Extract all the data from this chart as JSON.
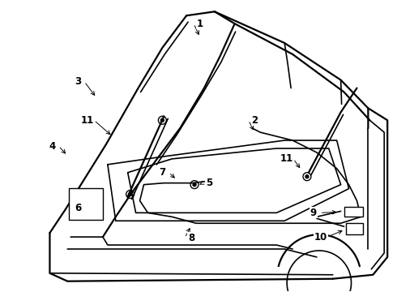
{
  "background_color": "#ffffff",
  "line_color": "#000000",
  "figsize": [
    4.9,
    3.6
  ],
  "dpi": 100,
  "small_circles": [
    [
      200,
      148,
      5
    ],
    [
      160,
      240,
      5
    ],
    [
      380,
      218,
      5
    ],
    [
      240,
      228,
      5
    ]
  ],
  "labels_pos": [
    [
      "1",
      247,
      28,
      247,
      45
    ],
    [
      "2",
      315,
      148,
      315,
      163
    ],
    [
      "3",
      95,
      100,
      118,
      120
    ],
    [
      "4",
      63,
      180,
      82,
      192
    ],
    [
      "5",
      258,
      226,
      246,
      228
    ],
    [
      "6",
      95,
      257,
      110,
      257
    ],
    [
      "7",
      200,
      213,
      218,
      222
    ],
    [
      "8",
      236,
      294,
      236,
      279
    ],
    [
      "9",
      388,
      263,
      420,
      262
    ],
    [
      "10",
      397,
      293,
      427,
      284
    ],
    [
      "11",
      107,
      148,
      138,
      168
    ],
    [
      "11",
      355,
      196,
      373,
      210
    ]
  ]
}
